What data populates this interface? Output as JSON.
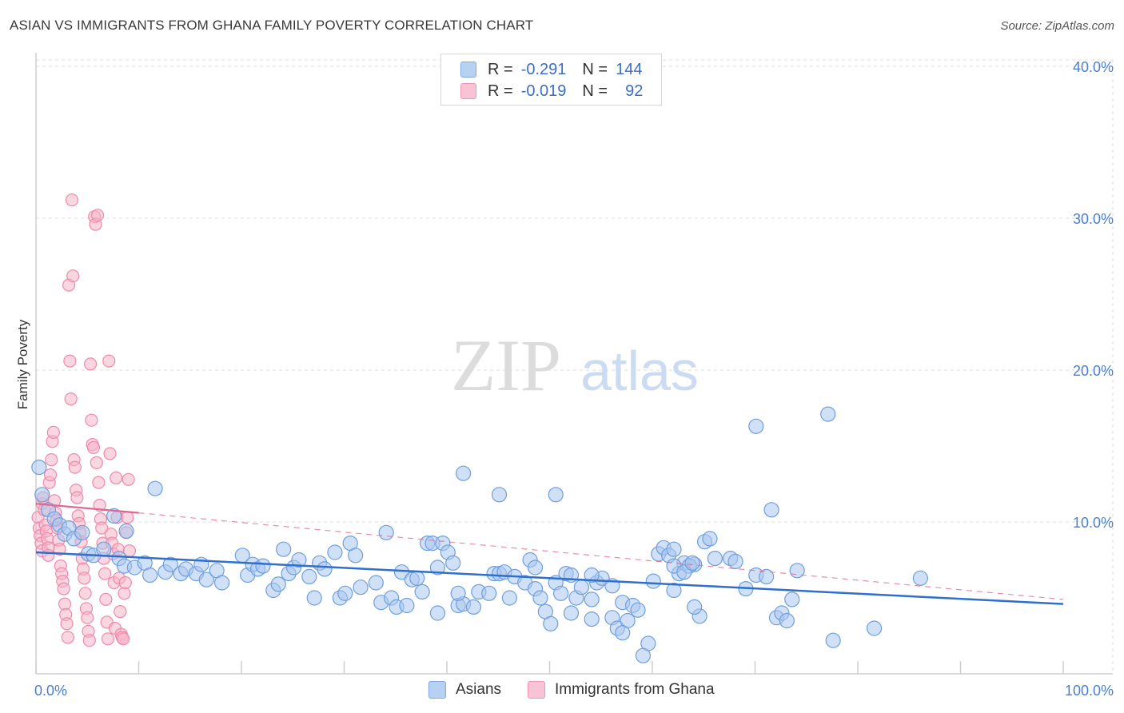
{
  "title": "ASIAN VS IMMIGRANTS FROM GHANA FAMILY POVERTY CORRELATION CHART",
  "source": "Source: ZipAtlas.com",
  "legend": {
    "rows": [
      {
        "r_label": "R =",
        "r_value": "-0.291",
        "n_label": "N =",
        "n_value": "144"
      },
      {
        "r_label": "R =",
        "r_value": "-0.019",
        "n_label": "N =",
        "n_value": "92"
      }
    ]
  },
  "colors": {
    "asian_fill": "#a9c7ef",
    "asian_stroke": "#6f9fdc",
    "asian_line": "#2f6fce",
    "ghana_fill": "#f6b4c9",
    "ghana_stroke": "#ee8aab",
    "ghana_line": "#e06690",
    "tick_label": "#4a7fcf",
    "grid": "#dddddd"
  },
  "chart_data": {
    "type": "scatter",
    "xlabel": "",
    "ylabel": "Family Poverty",
    "x_tick_labels": [
      "0.0%",
      "100.0%"
    ],
    "y_tick_labels": [
      "10.0%",
      "20.0%",
      "30.0%",
      "40.0%"
    ],
    "y_ticks": [
      10,
      20,
      30,
      40
    ],
    "xlim": [
      0,
      100
    ],
    "ylim": [
      0,
      41
    ],
    "grid": true,
    "legend_position": "top-center",
    "watermark": "ZIPatlas",
    "series": [
      {
        "name": "Asians",
        "r": -0.291,
        "n": 144,
        "trend": {
          "x": [
            0,
            100
          ],
          "y": [
            8.0,
            4.6
          ],
          "style": "solid"
        },
        "points": [
          [
            0.3,
            13.6
          ],
          [
            0.6,
            11.8
          ],
          [
            1.2,
            10.8
          ],
          [
            1.8,
            10.2
          ],
          [
            2.3,
            9.8
          ],
          [
            2.8,
            9.2
          ],
          [
            3.2,
            9.6
          ],
          [
            3.7,
            8.9
          ],
          [
            4.5,
            9.3
          ],
          [
            5.1,
            7.9
          ],
          [
            5.6,
            7.8
          ],
          [
            6.6,
            8.2
          ],
          [
            7.6,
            10.4
          ],
          [
            8.8,
            9.4
          ],
          [
            8.1,
            7.6
          ],
          [
            8.6,
            7.1
          ],
          [
            9.6,
            7.0
          ],
          [
            10.6,
            7.3
          ],
          [
            11.1,
            6.5
          ],
          [
            12.6,
            6.7
          ],
          [
            13.1,
            7.2
          ],
          [
            14.1,
            6.6
          ],
          [
            14.6,
            6.9
          ],
          [
            15.6,
            6.6
          ],
          [
            16.1,
            7.2
          ],
          [
            16.6,
            6.2
          ],
          [
            17.6,
            6.8
          ],
          [
            18.1,
            6.0
          ],
          [
            20.1,
            7.8
          ],
          [
            20.6,
            6.5
          ],
          [
            21.1,
            7.2
          ],
          [
            21.6,
            6.9
          ],
          [
            22.1,
            7.1
          ],
          [
            23.1,
            5.5
          ],
          [
            23.6,
            5.9
          ],
          [
            24.1,
            8.2
          ],
          [
            24.6,
            6.6
          ],
          [
            25.1,
            7.0
          ],
          [
            25.6,
            7.5
          ],
          [
            26.6,
            6.4
          ],
          [
            27.1,
            5.0
          ],
          [
            27.6,
            7.3
          ],
          [
            28.1,
            6.9
          ],
          [
            29.6,
            5.0
          ],
          [
            29.1,
            8.0
          ],
          [
            30.1,
            5.3
          ],
          [
            30.6,
            8.6
          ],
          [
            31.1,
            7.8
          ],
          [
            31.6,
            5.7
          ],
          [
            33.1,
            6.0
          ],
          [
            33.6,
            4.7
          ],
          [
            34.6,
            5.0
          ],
          [
            35.1,
            4.4
          ],
          [
            36.1,
            4.5
          ],
          [
            34.1,
            9.3
          ],
          [
            35.6,
            6.7
          ],
          [
            36.6,
            6.2
          ],
          [
            37.6,
            5.4
          ],
          [
            38.1,
            8.6
          ],
          [
            38.6,
            8.6
          ],
          [
            39.1,
            4.0
          ],
          [
            39.6,
            8.6
          ],
          [
            40.1,
            8.0
          ],
          [
            41.1,
            4.5
          ],
          [
            41.6,
            4.6
          ],
          [
            41.1,
            5.3
          ],
          [
            42.6,
            4.4
          ],
          [
            43.1,
            5.4
          ],
          [
            44.1,
            5.3
          ],
          [
            46.1,
            5.0
          ],
          [
            41.6,
            13.2
          ],
          [
            44.6,
            6.6
          ],
          [
            45.1,
            6.6
          ],
          [
            45.6,
            6.7
          ],
          [
            46.6,
            6.4
          ],
          [
            47.6,
            6.0
          ],
          [
            48.6,
            5.6
          ],
          [
            49.1,
            5.0
          ],
          [
            49.6,
            4.1
          ],
          [
            50.1,
            3.3
          ],
          [
            48.1,
            7.5
          ],
          [
            48.6,
            7.0
          ],
          [
            45.1,
            11.8
          ],
          [
            50.6,
            6.0
          ],
          [
            51.1,
            5.3
          ],
          [
            51.6,
            6.6
          ],
          [
            52.1,
            4.0
          ],
          [
            52.6,
            5.0
          ],
          [
            53.1,
            5.7
          ],
          [
            54.1,
            3.6
          ],
          [
            54.6,
            6.0
          ],
          [
            54.1,
            4.9
          ],
          [
            50.6,
            11.8
          ],
          [
            55.1,
            6.3
          ],
          [
            56.1,
            3.7
          ],
          [
            56.6,
            3.0
          ],
          [
            57.1,
            4.7
          ],
          [
            57.6,
            3.5
          ],
          [
            58.1,
            4.5
          ],
          [
            58.6,
            4.2
          ],
          [
            56.1,
            5.8
          ],
          [
            59.6,
            2.0
          ],
          [
            60.1,
            6.1
          ],
          [
            60.6,
            7.9
          ],
          [
            61.1,
            8.3
          ],
          [
            61.6,
            7.8
          ],
          [
            62.1,
            5.5
          ],
          [
            62.6,
            6.6
          ],
          [
            63.1,
            7.3
          ],
          [
            64.1,
            7.2
          ],
          [
            62.1,
            7.1
          ],
          [
            62.1,
            8.2
          ],
          [
            63.6,
            7.1
          ],
          [
            64.6,
            3.8
          ],
          [
            64.1,
            4.4
          ],
          [
            63.1,
            6.7
          ],
          [
            63.9,
            7.3
          ],
          [
            65.1,
            8.7
          ],
          [
            65.6,
            8.9
          ],
          [
            66.1,
            7.6
          ],
          [
            67.6,
            7.6
          ],
          [
            68.1,
            7.4
          ],
          [
            69.1,
            5.6
          ],
          [
            70.1,
            6.5
          ],
          [
            71.1,
            6.4
          ],
          [
            72.1,
            3.7
          ],
          [
            70.1,
            16.3
          ],
          [
            71.6,
            10.8
          ],
          [
            72.6,
            4.0
          ],
          [
            73.1,
            3.5
          ],
          [
            73.6,
            4.9
          ],
          [
            74.1,
            6.8
          ],
          [
            77.1,
            17.1
          ],
          [
            77.6,
            2.2
          ],
          [
            81.6,
            3.0
          ],
          [
            86.1,
            6.3
          ],
          [
            59.1,
            1.2
          ],
          [
            57.1,
            2.7
          ],
          [
            52.1,
            6.5
          ],
          [
            54.1,
            6.5
          ],
          [
            11.6,
            12.2
          ],
          [
            37.1,
            6.3
          ],
          [
            39.1,
            7.0
          ],
          [
            40.6,
            7.3
          ]
        ]
      },
      {
        "name": "Immigrants from Ghana",
        "r": -0.019,
        "n": 92,
        "trend": {
          "x": [
            0,
            10
          ],
          "y": [
            11.2,
            10.6
          ],
          "style": "solid",
          "extension": {
            "x": [
              10,
              100
            ],
            "y": [
              10.6,
              4.9
            ],
            "style": "dashed"
          }
        },
        "points": [
          [
            0.2,
            10.3
          ],
          [
            0.3,
            9.6
          ],
          [
            0.4,
            9.1
          ],
          [
            0.5,
            8.6
          ],
          [
            0.6,
            8.1
          ],
          [
            0.6,
            11.2
          ],
          [
            0.7,
            11.6
          ],
          [
            0.8,
            10.8
          ],
          [
            0.9,
            9.8
          ],
          [
            1.0,
            9.4
          ],
          [
            1.1,
            8.9
          ],
          [
            1.2,
            8.3
          ],
          [
            1.2,
            7.8
          ],
          [
            1.3,
            12.6
          ],
          [
            1.4,
            13.1
          ],
          [
            1.5,
            14.1
          ],
          [
            1.6,
            15.3
          ],
          [
            1.7,
            15.9
          ],
          [
            1.8,
            11.4
          ],
          [
            1.9,
            10.6
          ],
          [
            2.0,
            10.1
          ],
          [
            2.1,
            9.6
          ],
          [
            2.2,
            8.8
          ],
          [
            2.3,
            8.2
          ],
          [
            2.4,
            7.1
          ],
          [
            2.5,
            6.6
          ],
          [
            2.6,
            6.1
          ],
          [
            2.7,
            5.6
          ],
          [
            2.8,
            4.6
          ],
          [
            2.9,
            3.9
          ],
          [
            3.0,
            3.3
          ],
          [
            3.1,
            2.4
          ],
          [
            3.2,
            25.6
          ],
          [
            3.3,
            20.6
          ],
          [
            3.4,
            18.1
          ],
          [
            3.5,
            31.2
          ],
          [
            3.6,
            26.2
          ],
          [
            3.7,
            14.1
          ],
          [
            3.8,
            13.6
          ],
          [
            3.9,
            12.1
          ],
          [
            4.0,
            11.6
          ],
          [
            4.1,
            10.4
          ],
          [
            4.2,
            9.9
          ],
          [
            4.3,
            9.3
          ],
          [
            4.4,
            8.7
          ],
          [
            4.5,
            7.6
          ],
          [
            4.6,
            6.9
          ],
          [
            4.7,
            6.3
          ],
          [
            4.8,
            5.3
          ],
          [
            4.9,
            4.3
          ],
          [
            5.0,
            3.7
          ],
          [
            5.1,
            2.8
          ],
          [
            5.2,
            2.2
          ],
          [
            5.3,
            20.4
          ],
          [
            5.4,
            16.7
          ],
          [
            5.5,
            15.1
          ],
          [
            5.6,
            14.9
          ],
          [
            5.7,
            30.1
          ],
          [
            5.8,
            29.6
          ],
          [
            5.9,
            13.9
          ],
          [
            6.0,
            30.2
          ],
          [
            6.1,
            12.6
          ],
          [
            6.2,
            11.1
          ],
          [
            6.3,
            10.2
          ],
          [
            6.4,
            9.6
          ],
          [
            6.5,
            8.6
          ],
          [
            6.6,
            7.6
          ],
          [
            6.7,
            6.6
          ],
          [
            6.8,
            4.9
          ],
          [
            6.9,
            3.4
          ],
          [
            7.0,
            2.3
          ],
          [
            7.1,
            20.6
          ],
          [
            7.2,
            14.5
          ],
          [
            7.3,
            9.2
          ],
          [
            7.4,
            8.6
          ],
          [
            7.5,
            7.9
          ],
          [
            7.6,
            6.0
          ],
          [
            7.7,
            3.0
          ],
          [
            7.8,
            12.9
          ],
          [
            7.9,
            10.3
          ],
          [
            8.0,
            8.2
          ],
          [
            8.1,
            6.3
          ],
          [
            8.2,
            4.1
          ],
          [
            8.3,
            2.6
          ],
          [
            8.4,
            2.4
          ],
          [
            8.5,
            2.3
          ],
          [
            8.6,
            5.3
          ],
          [
            8.7,
            6.0
          ],
          [
            8.8,
            9.3
          ],
          [
            8.9,
            10.3
          ],
          [
            9.0,
            12.8
          ],
          [
            9.1,
            8.1
          ]
        ]
      }
    ]
  }
}
